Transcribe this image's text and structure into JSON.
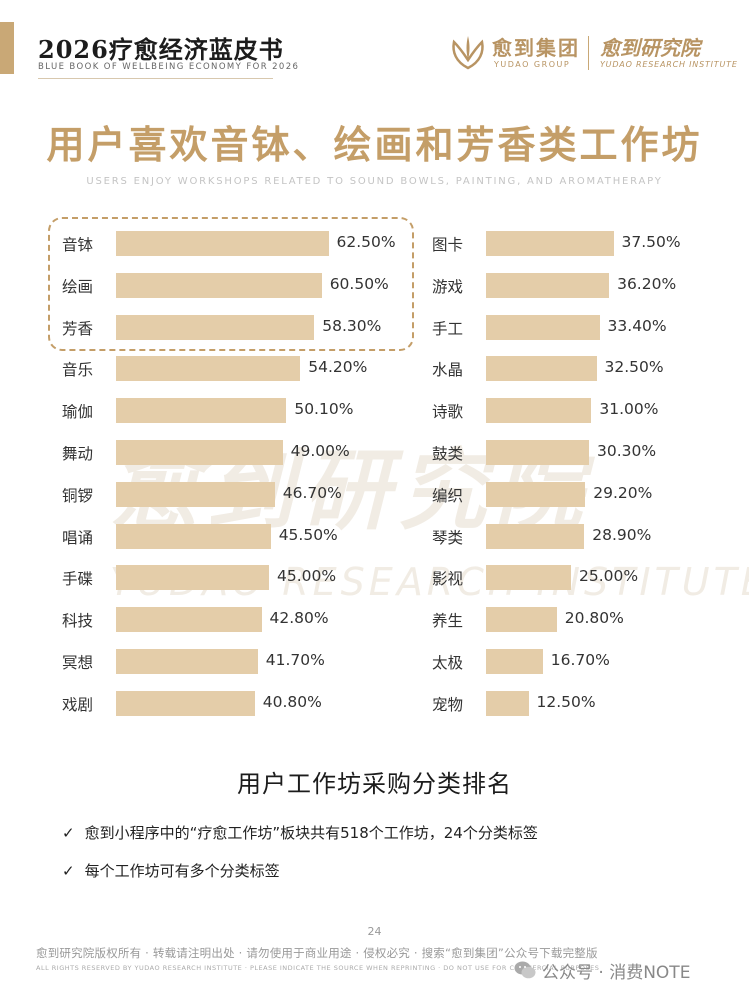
{
  "header": {
    "title": "2026疗愈经济蓝皮书",
    "subtitle": "BLUE BOOK OF WELLBEING ECONOMY FOR 2026",
    "logo_name": "愈到集团",
    "logo_en": "YUDAO GROUP",
    "logo_institute": "愈到研究院",
    "logo_institute_en": "YUDAO RESEARCH INSTITUTE",
    "accent_color": "#c9a876"
  },
  "main": {
    "title": "用户喜欢音钵、绘画和芳香类工作坊",
    "title_en": "USERS ENJOY WORKSHOPS RELATED TO SOUND BOWLS, PAINTING, AND AROMATHERAPY"
  },
  "watermark": {
    "cn": "愈到研究院",
    "en": "YUDAO RESEARCH INSTITUTE"
  },
  "chart_data": {
    "type": "bar",
    "orientation": "horizontal",
    "unit": "%",
    "bar_color": "#e4cda9",
    "highlight_border_color": "#c49e68",
    "highlighted": [
      "音钵",
      "绘画",
      "芳香"
    ],
    "title": "用户工作坊采购分类排名",
    "left": {
      "categories": [
        "音钵",
        "绘画",
        "芳香",
        "音乐",
        "瑜伽",
        "舞动",
        "铜锣",
        "唱诵",
        "手碟",
        "科技",
        "冥想",
        "戏剧"
      ],
      "values": [
        62.5,
        60.5,
        58.3,
        54.2,
        50.1,
        49.0,
        46.7,
        45.5,
        45.0,
        42.8,
        41.7,
        40.8
      ],
      "labels": [
        "62.50%",
        "60.50%",
        "58.30%",
        "54.20%",
        "50.10%",
        "49.00%",
        "46.70%",
        "45.50%",
        "45.00%",
        "42.80%",
        "41.70%",
        "40.80%"
      ]
    },
    "right": {
      "categories": [
        "图卡",
        "游戏",
        "手工",
        "水晶",
        "诗歌",
        "鼓类",
        "编织",
        "琴类",
        "影视",
        "养生",
        "太极",
        "宠物"
      ],
      "values": [
        37.5,
        36.2,
        33.4,
        32.5,
        31.0,
        30.3,
        29.2,
        28.9,
        25.0,
        20.8,
        16.7,
        12.5
      ],
      "labels": [
        "37.50%",
        "36.20%",
        "33.40%",
        "32.50%",
        "31.00%",
        "30.30%",
        "29.20%",
        "28.90%",
        "25.00%",
        "20.80%",
        "16.70%",
        "12.50%"
      ]
    }
  },
  "notes": [
    "愈到小程序中的“疗愈工作坊”板块共有518个工作坊，24个分类标签",
    "每个工作坊可有多个分类标签"
  ],
  "check_glyph": "✓",
  "footer": {
    "page": "24",
    "copyright": "愈到研究院版权所有 · 转载请注明出处 · 请勿使用于商业用途 · 侵权必究 · 搜索“愈到集团”公众号下载完整版",
    "copyright_en": "ALL RIGHTS RESERVED BY YUDAO RESEARCH INSTITUTE · PLEASE INDICATE THE SOURCE WHEN REPRINTING · DO NOT USE FOR COMMERCIAL PURPOSES",
    "wechat": "公众号 · 消费NOTE"
  }
}
